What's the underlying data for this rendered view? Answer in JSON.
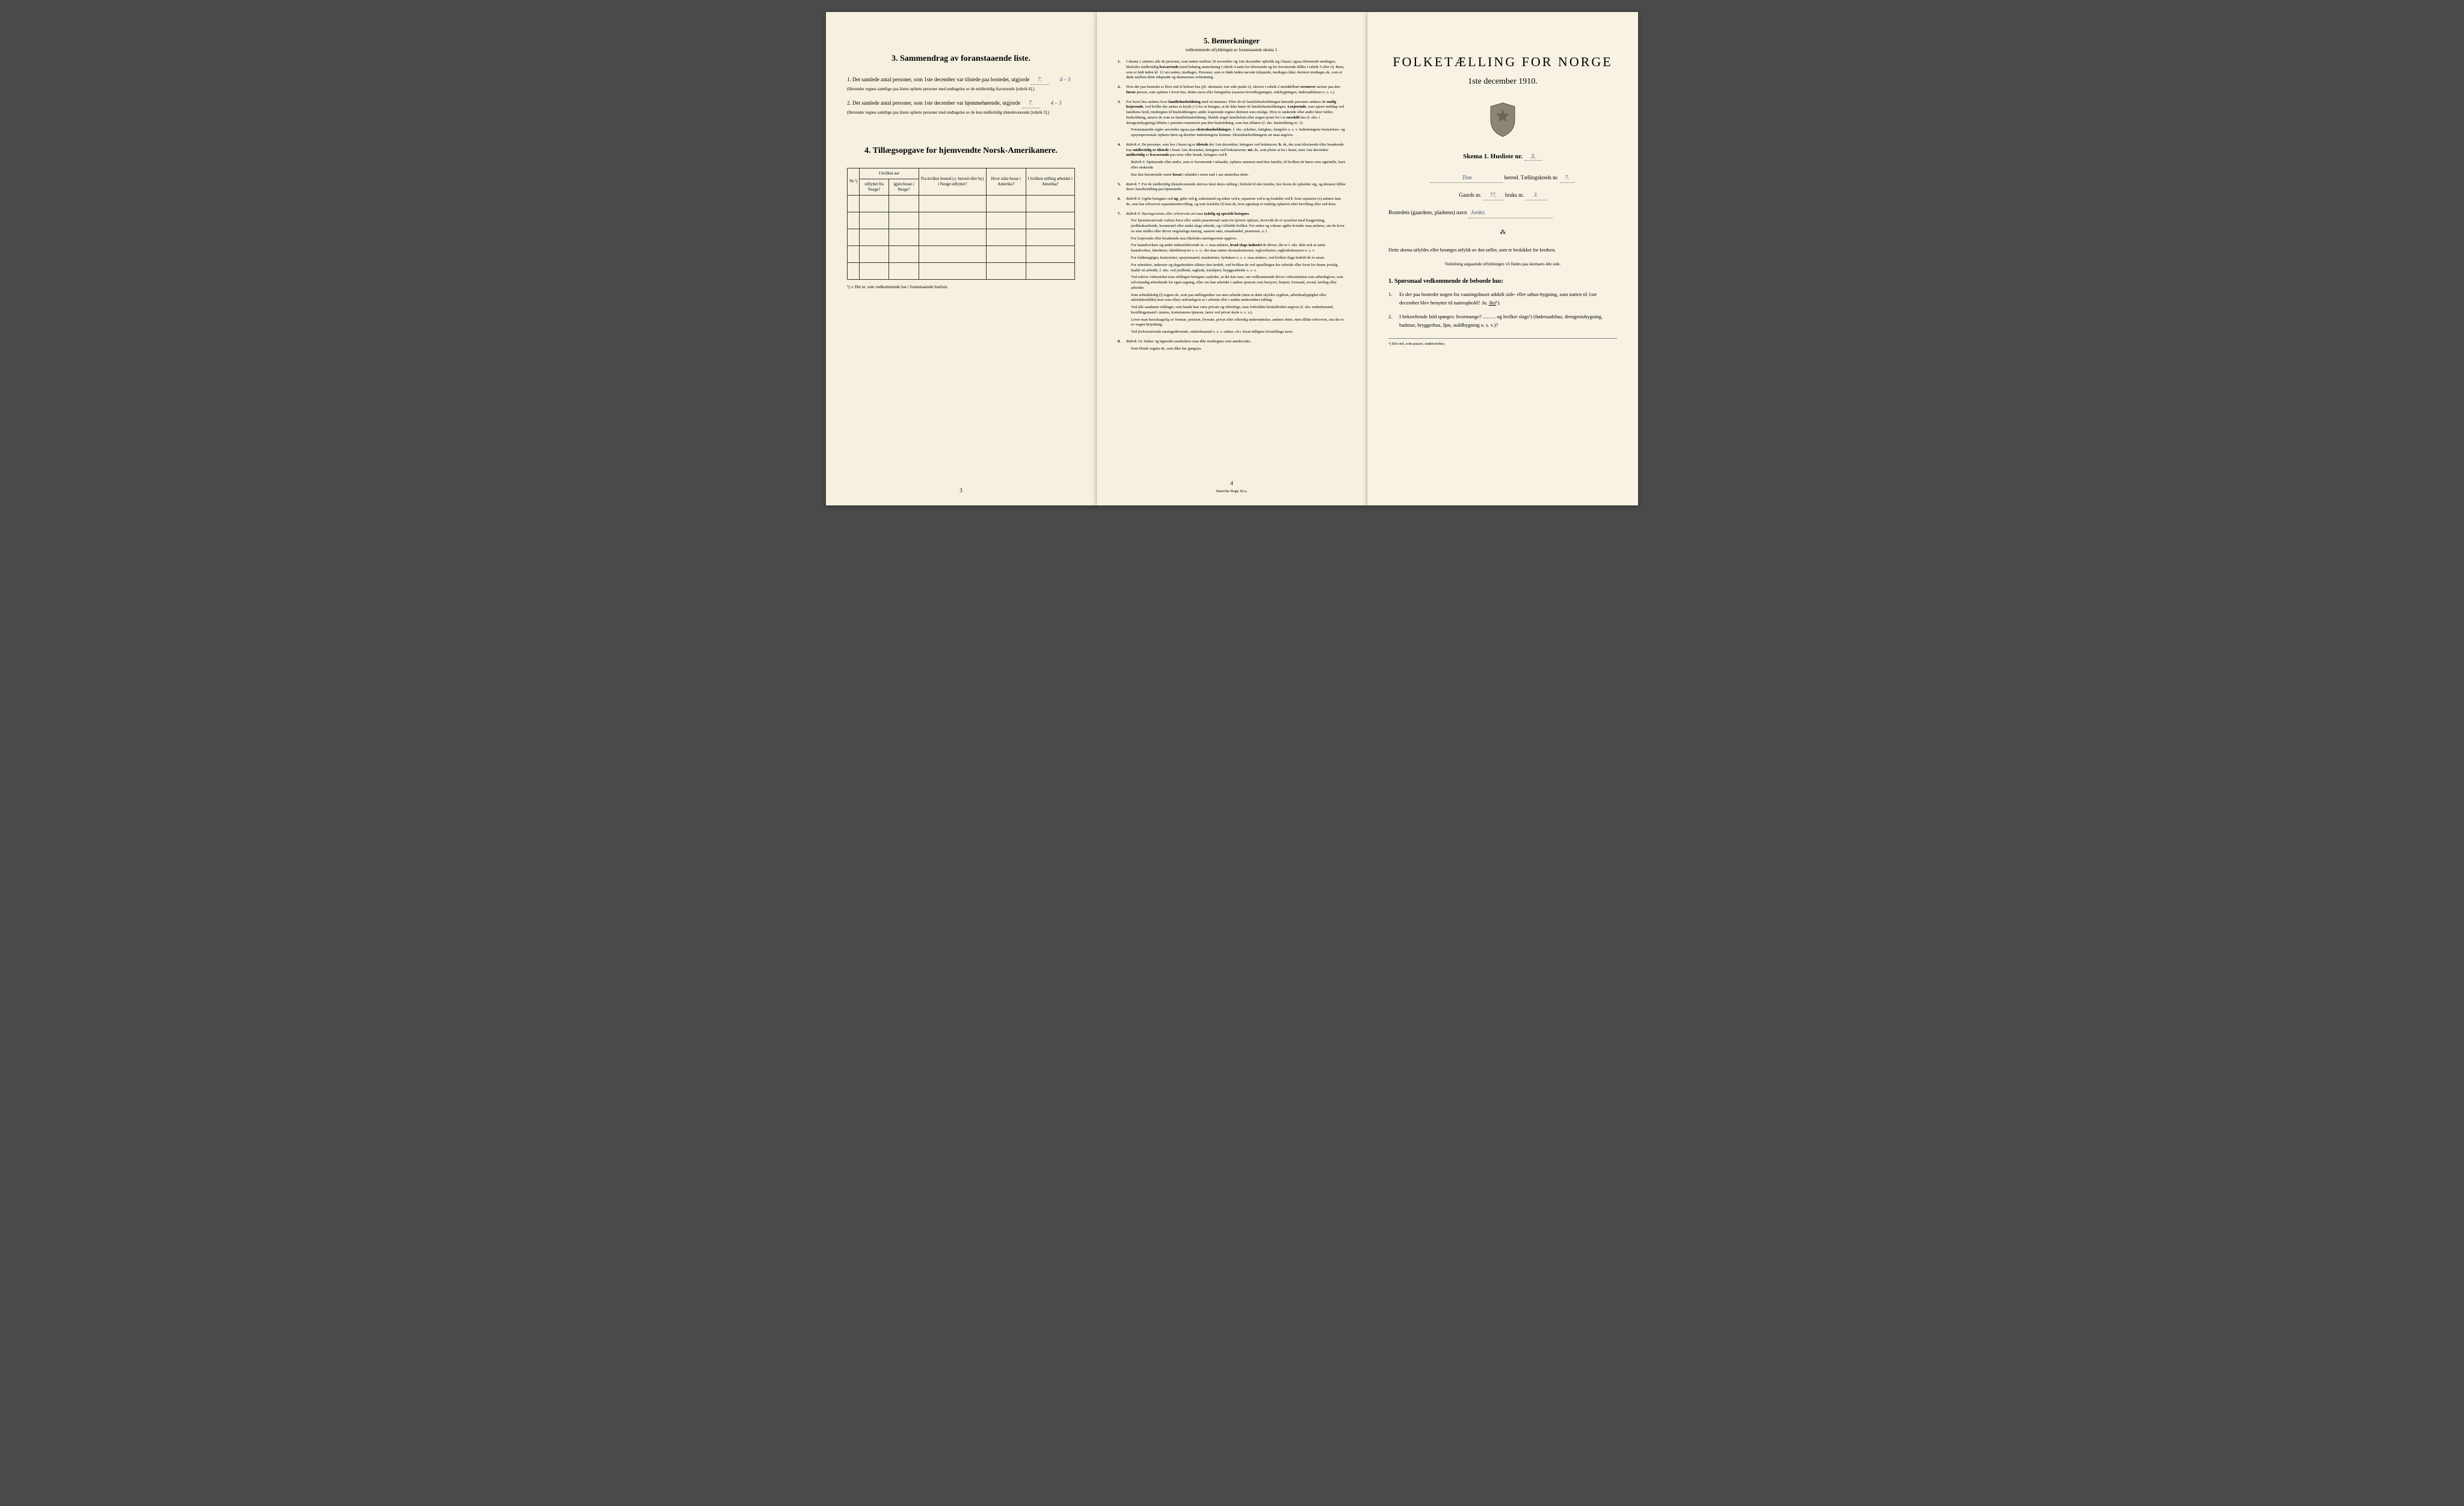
{
  "colors": {
    "paper": "#f5f0e0",
    "paper_right": "#f7f2e3",
    "background": "#4a4a4a",
    "ink": "#1a1a1a",
    "handwriting": "#5a5a9e",
    "border": "#333333"
  },
  "page_left": {
    "section3": {
      "title": "3.   Sammendrag av foranstaaende liste.",
      "item1_text": "Det samlede antal personer, som 1ste december var tilstede paa bostedet, utgjorde",
      "item1_value": "7.",
      "item1_annotation": "4 – 3",
      "item1_note": "(Herunder regnes samtlige paa listen opførte personer med undtagelse av de midlertidig fraværende [rubrik 6].)",
      "item2_text": "Det samlede antal personer, som 1ste december var hjemmehørende, utgjorde",
      "item2_value": "7.",
      "item2_annotation": "4 – 3",
      "item2_note": "(Herunder regnes samtlige paa listen opførte personer med undtagelse av de kun midlertidig tilstedeværende [rubrik 5].)"
    },
    "section4": {
      "title": "4.   Tillægsopgave for hjemvendte Norsk-Amerikanere.",
      "table_headers": {
        "col1": "Nr.¹)",
        "col2_top": "I hvilket aar",
        "col2a": "utflyttet fra Norge?",
        "col2b": "igjen bosat i Norge?",
        "col3": "Fra hvilket bosted (ɔ: herred eller by) i Norge utflyttet?",
        "col4": "Hvor sidst bosat i Amerika?",
        "col5": "I hvilken stilling arbeidet i Amerika?"
      },
      "empty_rows": 5,
      "note": "¹) ɔ: Det nr. som vedkommende har i foranstaaende husliste."
    },
    "page_num": "3"
  },
  "page_mid": {
    "title": "5.   Bemerkninger",
    "subtitle": "vedkommende utfyldningen av foranstaaende skema 1.",
    "remarks": [
      "I skema 1 anføres alle de personer, som natten mellem 30 november og 1ste december opholdt sig i huset; ogsaa tilreisende medtages; likeledes midlertidig <b>fraværende</b> (med behørig anmerkning i rubrik 4 samt for tilreisende og for fraværende tillike i rubrik 5 eller 6). Barn, som er født inden kl. 12 om natten, medtages. Personer, som er døde inden nævnte tidspunkt, medtages ikke; derimot medtages de, som er døde mellem dette tidspunkt og skemaernes avhentning.",
      "Hvis der paa bostedet er flere end ét beboet hus (jfr. skemaets 1ste side punkt 2), skrives i rubrik 2 umiddelbart <b>ovenover</b> navnet paa den <b>første</b> person, som opføres i hvert hus, dettes navn eller betegnelse (saasom hovedbygningen, sidebygningen, føderaadshuset o. s. v.).",
      "For hvert hus anføres hver <b>familiehusholdning</b> med sit nummer. Efter de til familiehusholdningen hørende personer anføres de <b>enslig losjerende</b>, ved hvilke der sættes et kryds (×) for at betegne, at de ikke hører til familiehusholdningen. <b>Losjerende</b>, som spiser middag ved familiens bord, medregnes til husholdningen; andre losjerende regnes derimot som enslige. Hvis to søskende eller andre fører fælles husholdning, ansees de som en familiehusholdning. Skulde noget familielem eller nogen tjener bo i et <b>særskilt</b> hus (f. eks. i drengestubygning) tilføies i parentes nummeret paa den husholdning, som han tilhører (f. eks. husholdning nr. 1).\nForanstaaende regler anvendes ogsaa paa <b>ekstrahusholdninger</b>, f. eks. sykehus, fattighus, fængsler o. s. v. Indretningens bestyrelses- og opsynspersonale opføres først og derefter indretningens lemmer. Ekstrahusholdningens art maa angives.",
      "<i>Rubrik 4.</i> De personer, som bor i huset og er <b>tilstede</b> der 1ste december, betegnes ved bokstaven: <b>b</b>; de, der som tilreisende eller besøkende kun <b>midlertidig er tilstede</b> i huset 1ste december, betegnes ved bokstaverne: <b>mt</b>; de, som pleier at bo i huset, men 1ste december <b>midlertidig</b> er <b>fraværende</b> paa reise eller besøk, betegnes ved <b>f</b>.\n<i>Rubrik 6.</i> Sjøfarende eller andre, som er fraværende i utlandet, opføres sammen med den familie, til hvilken de hører som egtefælle, barn eller søskende.\nHar den fraværende været <b>bosat</b> i utlandet i mere end 1 aar anmerkes dette.",
      "<i>Rubrik 7.</i> For de midlertidig tilstedeværende skrives først deres stilling i forhold til den familie, hos hvem de opholder sig, og dernæst tillike deres familiestilling paa hjemstedet.",
      "<i>Rubrik 8.</i> Ugifte betegnes ved <b>ug</b>, gifte ved <b>g</b>, enkemænd og enker ved <b>e</b>, separerte ved <b>s</b> og fraskilte ved <b>f</b>. Som separerte (s) anføres kun de, som har erhvervet separationsbevilling, og som fraskilte (f) kun de, hvis egteskap er endelig ophævet efter bevilling eller ved dom.",
      "<i>Rubrik 9.</i> <i>Næringsveiens eller erhvervets art</i> maa <b>tydelig og specielt betegnes</b>.\n<i>For hjemmeværende voksne barn eller andre paarørende</i> samt for <i>tjenere</i> oplyses, hvorvidt de er sysselsat med husgjerning, jordbruksarbeide, kreaturstel eller andet slags arbeide, og i tilfælde hvilket. For enker og voksne ugifte kvinder maa anføres, om de lever av sine midler eller driver nogenslags næring, saasom søm, smaahandel, pensionat, o. l.\nFor losjerende eller besøkende maa likeledes næringsveien opgives.\nFor haandverkere og andre industridrivende m. v. maa anføres, <b>hvad slags industri</b> de driver; det er f. eks. ikke nok at sætte haandverker, fabrikeier, fabrikbestyrer o. s. v.; der maa sættes skomakermester, teglverkseier, sagbruksbestyrer o. s. v.\nFor fuldmægtiger, kontorister, opsynsmænd, maskinister, fyrbøtere o. s. v. maa anføres, ved hvilket slags bedrift de er ansat.\nFor arbeidere, inderster og dagarbeidere tilføies den bedrift, ved hvilken de ved optællingen <i>har</i> arbeide eller forut for denne jevnlig <i>hadde</i> sit arbeide, f. eks. ved jordbruk, sagbruk, træsliperi, bryggearbeide o. s. v.\nVed enhver virksomhet maa stillingen betegnes saaledes, at det kan sees, om vedkommende driver virksomheten som arbeidsgiver, som selvstændig arbeidende for egen regning, eller om han arbeider i andres tjeneste som bestyrer, betjent, formand, svend, lærling eller arbeider.\nSom arbeidsledig (l) regnes de, som paa tællingstiden var uten arbeide (uten at dette skyldes sygdom, arbeidsudygtighet eller arbeidskonflikt) men som ellers sedvanligvis er i arbeide eller i anden underordnet stilling.\nVed alle saadanne stillinger, som baade kan være private og offentlige, maa forholdets beskaffenhet angives (f. eks. embedsmand, bestillingsmand i statens, kommunens tjeneste, lærer ved privat skole o. s. v.).\nLever man <i>hovedsagelig</i> av formue, pension, livrente, privat eller offentlig understøttelse, anføres dette, men tillike erhvervet, om det er av nogen betydning.\nVed <i>forhenværende</i> næringsdrivende, embedsmænd o. s. v. sættes «fv» foran tidligere livsstillings navn.",
      "<i>Rubrik 14.</i> Sinker og lignende aandssløve maa <i>ikke</i> medregnes som aandssvake.\nSom <i>blinde</i> regnes de, som ikke har gangsyn."
    ],
    "page_num": "4",
    "printer": "Steen'ske Bogtr.  Kr.a."
  },
  "page_right": {
    "main_title": "FOLKETÆLLING FOR NORGE",
    "date": "1ste december 1910.",
    "skema_label": "Skema 1.   Husliste nr.",
    "husliste_nr": "3.",
    "herred_value": "Tinn",
    "herred_label": "herred.  Tællingskreds nr.",
    "kreds_nr": "7.",
    "gaards_label": "Gaards nr.",
    "gaards_nr": "77,",
    "bruks_label": "bruks nr.",
    "bruks_nr": "3.",
    "bosted_label": "Bostedets (gaardens, pladsens) navn",
    "bosted_value": "Jordet.",
    "divider": "⁂",
    "instruction": "Dette skema utfyldes eller besørges utfyldt av den tæller, som er beskikket for kredsen.",
    "instruction_sub": "Veiledning angaaende utfyldningen vil findes paa skemaets 4de side.",
    "q_heading": "1. Spørsmaal vedkommende de beboede hus:",
    "q1": "Er der paa bostedet nogen fra vaaningshuset adskilt side- eller uthus-bygning, som natten til 1ste december blev benyttet til natteophold?   Ja.   Nei¹).",
    "q2": "I bekræftende fald spørges: hvormange? .......... og hvilket slags¹) (føderaadshus, drengestubygning, badstue, bryggerhus, fjøs, staldbygning o. s. v.)?",
    "footnote": "¹) Det ord, som passer, understrekes."
  }
}
